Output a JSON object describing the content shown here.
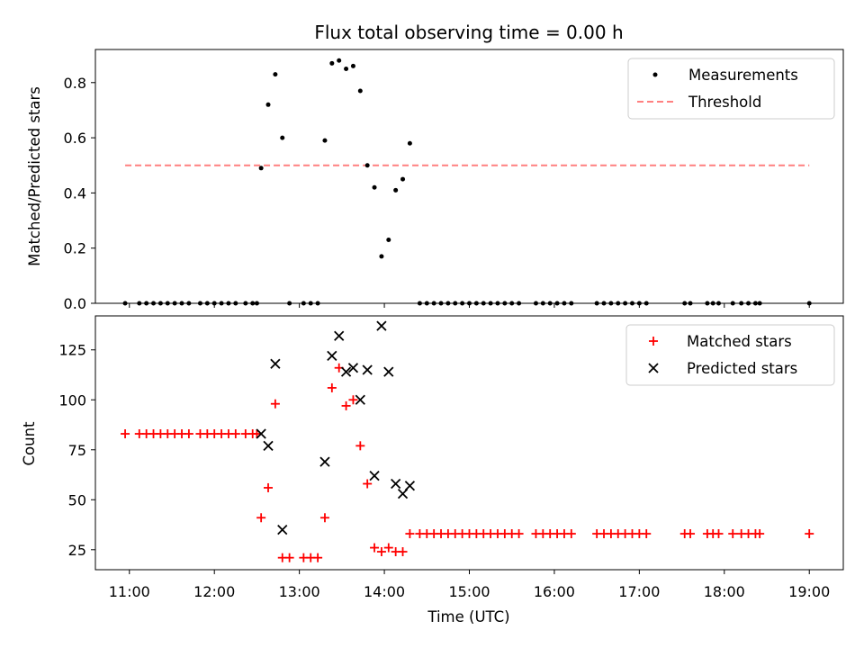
{
  "chart_data": [
    {
      "type": "scatter",
      "title": "Flux total observing time = 0.00 h",
      "ylabel": "Matched/Predicted stars",
      "xlabel": "",
      "xlim": [
        "10:36",
        "19:24"
      ],
      "ylim": [
        0,
        0.92
      ],
      "yticks": [
        "0.0",
        "0.2",
        "0.4",
        "0.6",
        "0.8"
      ],
      "legend_position": "top-right",
      "grid": false,
      "series": [
        {
          "name": "Measurements",
          "marker": "dot",
          "color": "#000000",
          "points": [
            [
              "10:57",
              0
            ],
            [
              "11:07",
              0
            ],
            [
              "11:12",
              0
            ],
            [
              "11:17",
              0
            ],
            [
              "11:22",
              0
            ],
            [
              "11:27",
              0
            ],
            [
              "11:32",
              0
            ],
            [
              "11:37",
              0
            ],
            [
              "11:42",
              0
            ],
            [
              "11:50",
              0
            ],
            [
              "11:55",
              0
            ],
            [
              "12:00",
              0
            ],
            [
              "12:05",
              0
            ],
            [
              "12:10",
              0
            ],
            [
              "12:15",
              0
            ],
            [
              "12:22",
              0
            ],
            [
              "12:27",
              0
            ],
            [
              "12:30",
              0
            ],
            [
              "12:33",
              0.49
            ],
            [
              "12:38",
              0.72
            ],
            [
              "12:43",
              0.83
            ],
            [
              "12:48",
              0.6
            ],
            [
              "12:53",
              0
            ],
            [
              "13:03",
              0
            ],
            [
              "13:08",
              0
            ],
            [
              "13:13",
              0
            ],
            [
              "13:18",
              0.59
            ],
            [
              "13:23",
              0.87
            ],
            [
              "13:28",
              0.88
            ],
            [
              "13:33",
              0.85
            ],
            [
              "13:38",
              0.86
            ],
            [
              "13:43",
              0.77
            ],
            [
              "13:48",
              0.5
            ],
            [
              "13:53",
              0.42
            ],
            [
              "13:58",
              0.17
            ],
            [
              "14:03",
              0.23
            ],
            [
              "14:08",
              0.41
            ],
            [
              "14:13",
              0.45
            ],
            [
              "14:18",
              0.58
            ],
            [
              "14:25",
              0
            ],
            [
              "14:30",
              0
            ],
            [
              "14:35",
              0
            ],
            [
              "14:40",
              0
            ],
            [
              "14:45",
              0
            ],
            [
              "14:50",
              0
            ],
            [
              "14:55",
              0
            ],
            [
              "15:00",
              0
            ],
            [
              "15:05",
              0
            ],
            [
              "15:10",
              0
            ],
            [
              "15:15",
              0
            ],
            [
              "15:20",
              0
            ],
            [
              "15:25",
              0
            ],
            [
              "15:30",
              0
            ],
            [
              "15:35",
              0
            ],
            [
              "15:47",
              0
            ],
            [
              "15:52",
              0
            ],
            [
              "15:57",
              0
            ],
            [
              "16:02",
              0
            ],
            [
              "16:07",
              0
            ],
            [
              "16:12",
              0
            ],
            [
              "16:30",
              0
            ],
            [
              "16:35",
              0
            ],
            [
              "16:40",
              0
            ],
            [
              "16:45",
              0
            ],
            [
              "16:50",
              0
            ],
            [
              "16:55",
              0
            ],
            [
              "17:00",
              0
            ],
            [
              "17:05",
              0
            ],
            [
              "17:32",
              0
            ],
            [
              "17:36",
              0
            ],
            [
              "17:48",
              0
            ],
            [
              "17:52",
              0
            ],
            [
              "17:56",
              0
            ],
            [
              "18:06",
              0
            ],
            [
              "18:12",
              0
            ],
            [
              "18:17",
              0
            ],
            [
              "18:22",
              0
            ],
            [
              "18:25",
              0
            ],
            [
              "19:00",
              0
            ]
          ]
        },
        {
          "name": "Threshold",
          "marker": "dashed-line",
          "color": "#ff8080",
          "points": [
            [
              "10:57",
              0.5
            ],
            [
              "19:00",
              0.5
            ]
          ]
        }
      ]
    },
    {
      "type": "scatter",
      "title": "",
      "ylabel": "Count",
      "xlabel": "Time (UTC)",
      "xlim": [
        "10:36",
        "19:24"
      ],
      "ylim": [
        15,
        142
      ],
      "yticks": [
        "25",
        "50",
        "75",
        "100",
        "125"
      ],
      "xticks": [
        "11:00",
        "12:00",
        "13:00",
        "14:00",
        "15:00",
        "16:00",
        "17:00",
        "18:00",
        "19:00"
      ],
      "legend_position": "top-right",
      "grid": false,
      "series": [
        {
          "name": "Matched stars",
          "marker": "plus",
          "color": "#ff0000",
          "points": [
            [
              "10:57",
              83
            ],
            [
              "11:07",
              83
            ],
            [
              "11:12",
              83
            ],
            [
              "11:17",
              83
            ],
            [
              "11:22",
              83
            ],
            [
              "11:27",
              83
            ],
            [
              "11:32",
              83
            ],
            [
              "11:37",
              83
            ],
            [
              "11:42",
              83
            ],
            [
              "11:50",
              83
            ],
            [
              "11:55",
              83
            ],
            [
              "12:00",
              83
            ],
            [
              "12:05",
              83
            ],
            [
              "12:10",
              83
            ],
            [
              "12:15",
              83
            ],
            [
              "12:22",
              83
            ],
            [
              "12:27",
              83
            ],
            [
              "12:30",
              83
            ],
            [
              "12:33",
              41
            ],
            [
              "12:38",
              56
            ],
            [
              "12:43",
              98
            ],
            [
              "12:48",
              21
            ],
            [
              "12:53",
              21
            ],
            [
              "13:03",
              21
            ],
            [
              "13:08",
              21
            ],
            [
              "13:13",
              21
            ],
            [
              "13:18",
              41
            ],
            [
              "13:23",
              106
            ],
            [
              "13:28",
              116
            ],
            [
              "13:33",
              97
            ],
            [
              "13:38",
              100
            ],
            [
              "13:43",
              77
            ],
            [
              "13:48",
              58
            ],
            [
              "13:53",
              26
            ],
            [
              "13:58",
              24
            ],
            [
              "14:03",
              26
            ],
            [
              "14:08",
              24
            ],
            [
              "14:13",
              24
            ],
            [
              "14:18",
              33
            ],
            [
              "14:25",
              33
            ],
            [
              "14:30",
              33
            ],
            [
              "14:35",
              33
            ],
            [
              "14:40",
              33
            ],
            [
              "14:45",
              33
            ],
            [
              "14:50",
              33
            ],
            [
              "14:55",
              33
            ],
            [
              "15:00",
              33
            ],
            [
              "15:05",
              33
            ],
            [
              "15:10",
              33
            ],
            [
              "15:15",
              33
            ],
            [
              "15:20",
              33
            ],
            [
              "15:25",
              33
            ],
            [
              "15:30",
              33
            ],
            [
              "15:35",
              33
            ],
            [
              "15:47",
              33
            ],
            [
              "15:52",
              33
            ],
            [
              "15:57",
              33
            ],
            [
              "16:02",
              33
            ],
            [
              "16:07",
              33
            ],
            [
              "16:12",
              33
            ],
            [
              "16:30",
              33
            ],
            [
              "16:35",
              33
            ],
            [
              "16:40",
              33
            ],
            [
              "16:45",
              33
            ],
            [
              "16:50",
              33
            ],
            [
              "16:55",
              33
            ],
            [
              "17:00",
              33
            ],
            [
              "17:05",
              33
            ],
            [
              "17:32",
              33
            ],
            [
              "17:36",
              33
            ],
            [
              "17:48",
              33
            ],
            [
              "17:52",
              33
            ],
            [
              "17:56",
              33
            ],
            [
              "18:06",
              33
            ],
            [
              "18:12",
              33
            ],
            [
              "18:17",
              33
            ],
            [
              "18:22",
              33
            ],
            [
              "18:25",
              33
            ],
            [
              "19:00",
              33
            ]
          ]
        },
        {
          "name": "Predicted stars",
          "marker": "x",
          "color": "#000000",
          "points": [
            [
              "12:33",
              83
            ],
            [
              "12:38",
              77
            ],
            [
              "12:43",
              118
            ],
            [
              "12:48",
              35
            ],
            [
              "13:18",
              69
            ],
            [
              "13:23",
              122
            ],
            [
              "13:28",
              132
            ],
            [
              "13:33",
              114
            ],
            [
              "13:38",
              116
            ],
            [
              "13:43",
              100
            ],
            [
              "13:48",
              115
            ],
            [
              "13:53",
              62
            ],
            [
              "13:58",
              137
            ],
            [
              "14:03",
              114
            ],
            [
              "14:08",
              58
            ],
            [
              "14:13",
              53
            ],
            [
              "14:18",
              57
            ]
          ]
        }
      ]
    }
  ]
}
